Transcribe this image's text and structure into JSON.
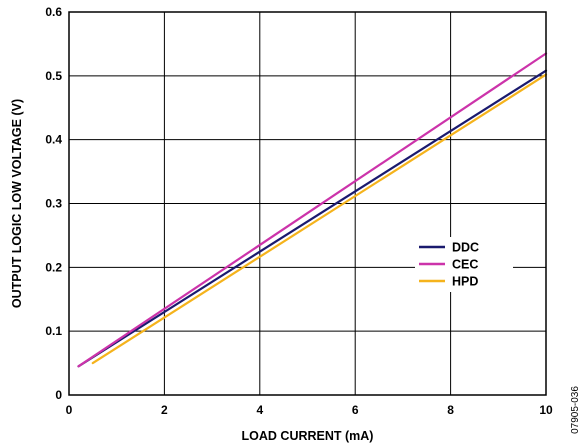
{
  "chart_data": {
    "type": "line",
    "xlabel": "LOAD CURRENT (mA)",
    "ylabel": "OUTPUT LOGIC LOW VOLTAGE (V)",
    "xlim": [
      0,
      10
    ],
    "ylim": [
      0,
      0.6
    ],
    "xticks": [
      "0",
      "2",
      "4",
      "6",
      "8",
      "10"
    ],
    "yticks": [
      "0",
      "0.1",
      "0.2",
      "0.3",
      "0.4",
      "0.5",
      "0.6"
    ],
    "grid": true,
    "legend_position": "right",
    "series": [
      {
        "name": "DDC",
        "color": "#1a1a6e",
        "x": [
          0.2,
          10
        ],
        "y": [
          0.045,
          0.508
        ]
      },
      {
        "name": "CEC",
        "color": "#cc33aa",
        "x": [
          0.2,
          10
        ],
        "y": [
          0.045,
          0.535
        ]
      },
      {
        "name": "HPD",
        "color": "#f5b31c",
        "x": [
          0.5,
          10
        ],
        "y": [
          0.05,
          0.502
        ]
      }
    ],
    "figure_id": "07905-036"
  }
}
